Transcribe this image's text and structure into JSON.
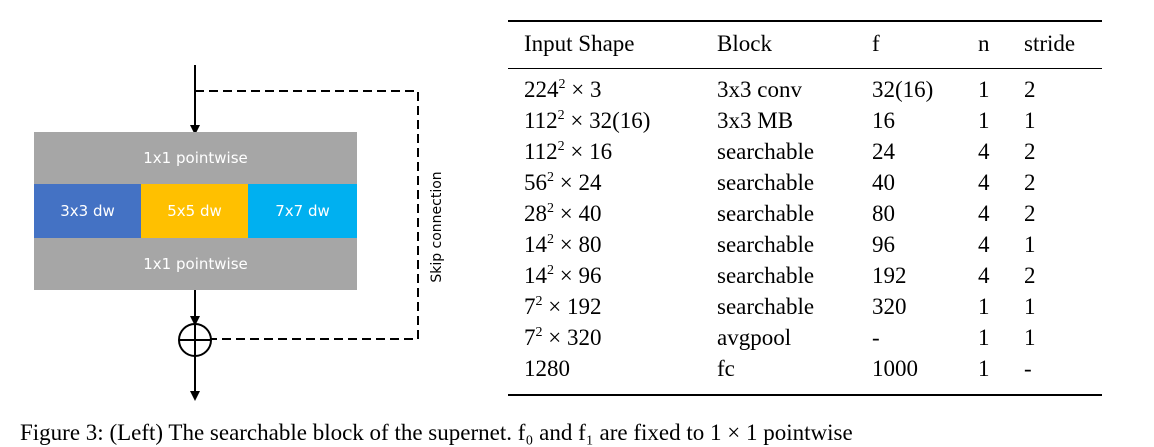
{
  "diagram": {
    "top_pointwise": "1x1 pointwise",
    "bottom_pointwise": "1x1 pointwise",
    "dw_3": "3x3 dw",
    "dw_5": "5x5 dw",
    "dw_7": "7x7 dw",
    "skip_label": "Skip connection",
    "colors": {
      "pointwise": "#a6a6a6",
      "dw_3": "#4472c4",
      "dw_5": "#ffc000",
      "dw_7": "#00b0f0"
    }
  },
  "table": {
    "headers": {
      "shape": "Input Shape",
      "block": "Block",
      "f": "f",
      "n": "n",
      "stride": "stride"
    },
    "rows": [
      {
        "base": "224",
        "exp": "2",
        "rest": " × 3",
        "block": "3x3 conv",
        "f": "32(16)",
        "n": "1",
        "stride": "2"
      },
      {
        "base": "112",
        "exp": "2",
        "rest": " × 32(16)",
        "block": "3x3 MB",
        "f": "16",
        "n": "1",
        "stride": "1"
      },
      {
        "base": "112",
        "exp": "2",
        "rest": " × 16",
        "block": "searchable",
        "f": "24",
        "n": "4",
        "stride": "2"
      },
      {
        "base": "56",
        "exp": "2",
        "rest": " × 24",
        "block": "searchable",
        "f": "40",
        "n": "4",
        "stride": "2"
      },
      {
        "base": "28",
        "exp": "2",
        "rest": " × 40",
        "block": "searchable",
        "f": "80",
        "n": "4",
        "stride": "2"
      },
      {
        "base": "14",
        "exp": "2",
        "rest": " × 80",
        "block": "searchable",
        "f": "96",
        "n": "4",
        "stride": "1"
      },
      {
        "base": "14",
        "exp": "2",
        "rest": " × 96",
        "block": "searchable",
        "f": "192",
        "n": "4",
        "stride": "2"
      },
      {
        "base": "7",
        "exp": "2",
        "rest": " × 192",
        "block": "searchable",
        "f": "320",
        "n": "1",
        "stride": "1"
      },
      {
        "base": "7",
        "exp": "2",
        "rest": " × 320",
        "block": "avgpool",
        "f": "-",
        "n": "1",
        "stride": "1"
      },
      {
        "base": "1280",
        "exp": "",
        "rest": "",
        "block": "fc",
        "f": "1000",
        "n": "1",
        "stride": "-"
      }
    ]
  },
  "caption": "Figure 3: (Left) The searchable block of the supernet.  f₀ and  f₁ are fixed to 1 × 1 pointwise"
}
